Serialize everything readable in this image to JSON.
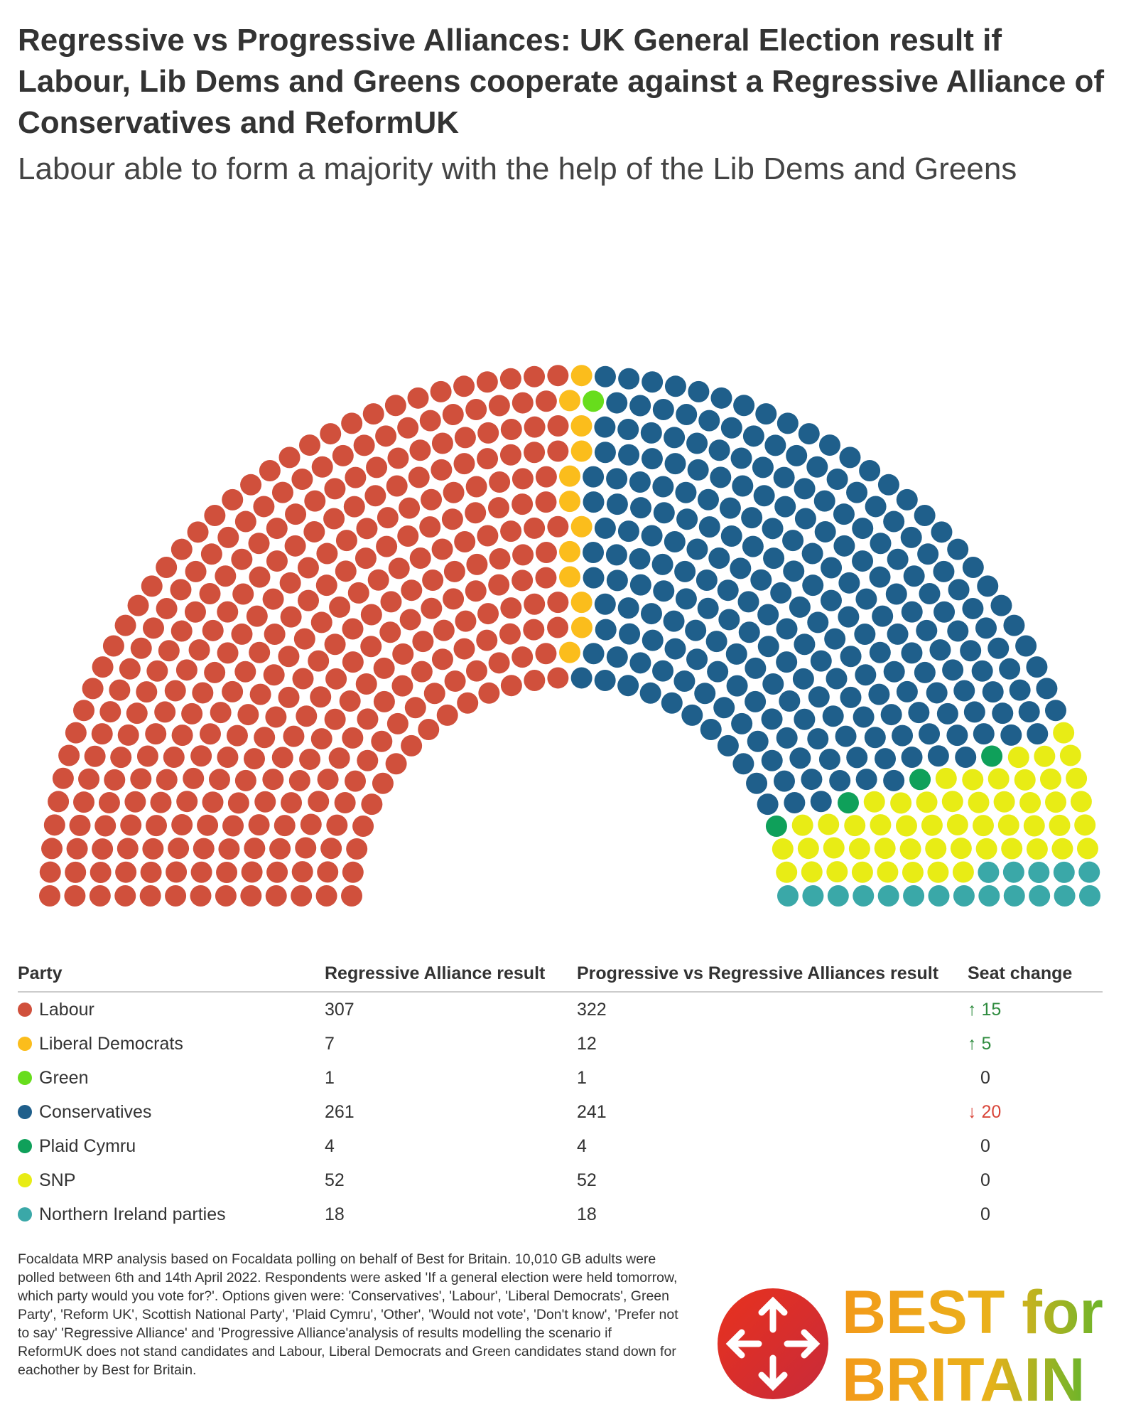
{
  "chart_data": {
    "type": "parliament",
    "title": "Regressive vs Progressive Alliances: UK General Election result if Labour, Lib Dems and Greens cooperate against a Regressive Alliance of Conservatives and ReformUK",
    "subtitle": "Labour able to form a majority with the help of the Lib Dems and Greens",
    "categories": [
      "Labour",
      "Liberal Democrats",
      "Green",
      "Conservatives",
      "Plaid Cymru",
      "SNP",
      "Northern Ireland parties"
    ],
    "colors": [
      "#d0503c",
      "#fbbd1c",
      "#67dd1c",
      "#1f5f8b",
      "#0fa05a",
      "#e8ec15",
      "#3aa8a8"
    ],
    "values": [
      322,
      12,
      1,
      241,
      4,
      52,
      18
    ],
    "table": {
      "headers": [
        "Party",
        "Regressive Alliance result",
        "Progressive vs Regressive Alliances result",
        "Seat change"
      ],
      "regressive": [
        307,
        7,
        1,
        261,
        4,
        52,
        18
      ],
      "change": [
        15,
        5,
        0,
        -20,
        0,
        0,
        0
      ],
      "change_labels": [
        "↑ 15",
        "↑ 5",
        "0",
        "↓ 20",
        "0",
        "0",
        "0"
      ]
    },
    "footnote": "Focaldata MRP analysis based on Focaldata polling on behalf of Best for Britain. 10,010 GB adults were polled between 6th and 14th April 2022. Respondents were asked 'If a general election were held tomorrow, which party would you vote for?'. Options given were: 'Conservatives', 'Labour', 'Liberal Democrats', Green Party', 'Reform UK', Scottish National Party', 'Plaid Cymru', 'Other', 'Would not vote', 'Don't know', 'Prefer not to say' 'Regressive Alliance' and 'Progressive Alliance'analysis of results modelling the scenario if ReformUK does not stand candidates and Labour, Liberal Democrats and Green candidates stand down for eachother by Best for Britain.",
    "logo": {
      "line1": "BEST for",
      "line2": "BRITAIN"
    }
  }
}
